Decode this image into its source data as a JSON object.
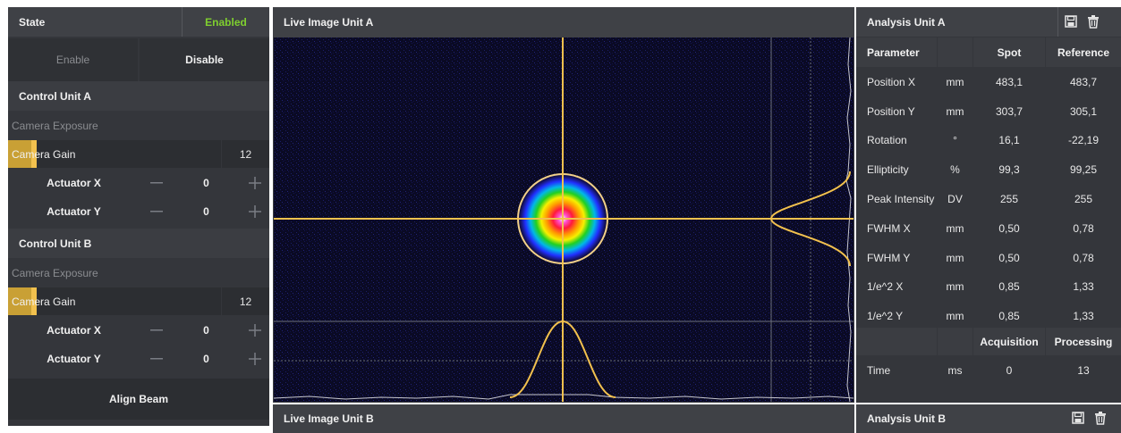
{
  "state": {
    "label": "State",
    "value": "Enabled",
    "enable_label": "Enable",
    "disable_label": "Disable"
  },
  "units": [
    {
      "title": "Control Unit A",
      "exposure_label": "Camera Exposure",
      "gain_label": "Camera Gain",
      "gain_value": "12",
      "gain_level": 0.12,
      "actuators": [
        {
          "label": "Actuator X",
          "value": "0"
        },
        {
          "label": "Actuator Y",
          "value": "0"
        }
      ]
    },
    {
      "title": "Control Unit B",
      "exposure_label": "Camera Exposure",
      "gain_label": "Camera Gain",
      "gain_value": "12",
      "gain_level": 0.12,
      "actuators": [
        {
          "label": "Actuator X",
          "value": "0"
        },
        {
          "label": "Actuator Y",
          "value": "0"
        }
      ]
    }
  ],
  "align_label": "Align Beam",
  "live": {
    "title_a": "Live Image Unit A",
    "title_b": "Live Image Unit B"
  },
  "analysis": {
    "title_a": "Analysis Unit A",
    "title_b": "Analysis Unit B",
    "headers": [
      "Parameter",
      "",
      "Spot",
      "Reference"
    ],
    "rows": [
      [
        "Position X",
        "mm",
        "483,1",
        "483,7"
      ],
      [
        "Position Y",
        "mm",
        "303,7",
        "305,1"
      ],
      [
        "Rotation",
        "°",
        "16,1",
        "-22,19"
      ],
      [
        "Ellipticity",
        "%",
        "99,3",
        "99,25"
      ],
      [
        "Peak Intensity",
        "DV",
        "255",
        "255"
      ],
      [
        "FWHM X",
        "mm",
        "0,50",
        "0,78"
      ],
      [
        "FWHM Y",
        "mm",
        "0,50",
        "0,78"
      ],
      [
        "1/e^2 X",
        "mm",
        "0,85",
        "1,33"
      ],
      [
        "1/e^2 Y",
        "mm",
        "0,85",
        "1,33"
      ]
    ],
    "time_headers": [
      "",
      "",
      "Acquisition",
      "Processing"
    ],
    "time_row": [
      "Time",
      "ms",
      "0",
      "13"
    ]
  },
  "colors": {
    "enabled": "#7fcf2f",
    "crosshair": "#f2c14e",
    "gain_fill": "#c9a035",
    "panel": "#3b3d42"
  },
  "icons": {
    "save": "save-icon",
    "delete": "trash-icon",
    "minus": "minus-icon",
    "plus": "plus-icon"
  }
}
